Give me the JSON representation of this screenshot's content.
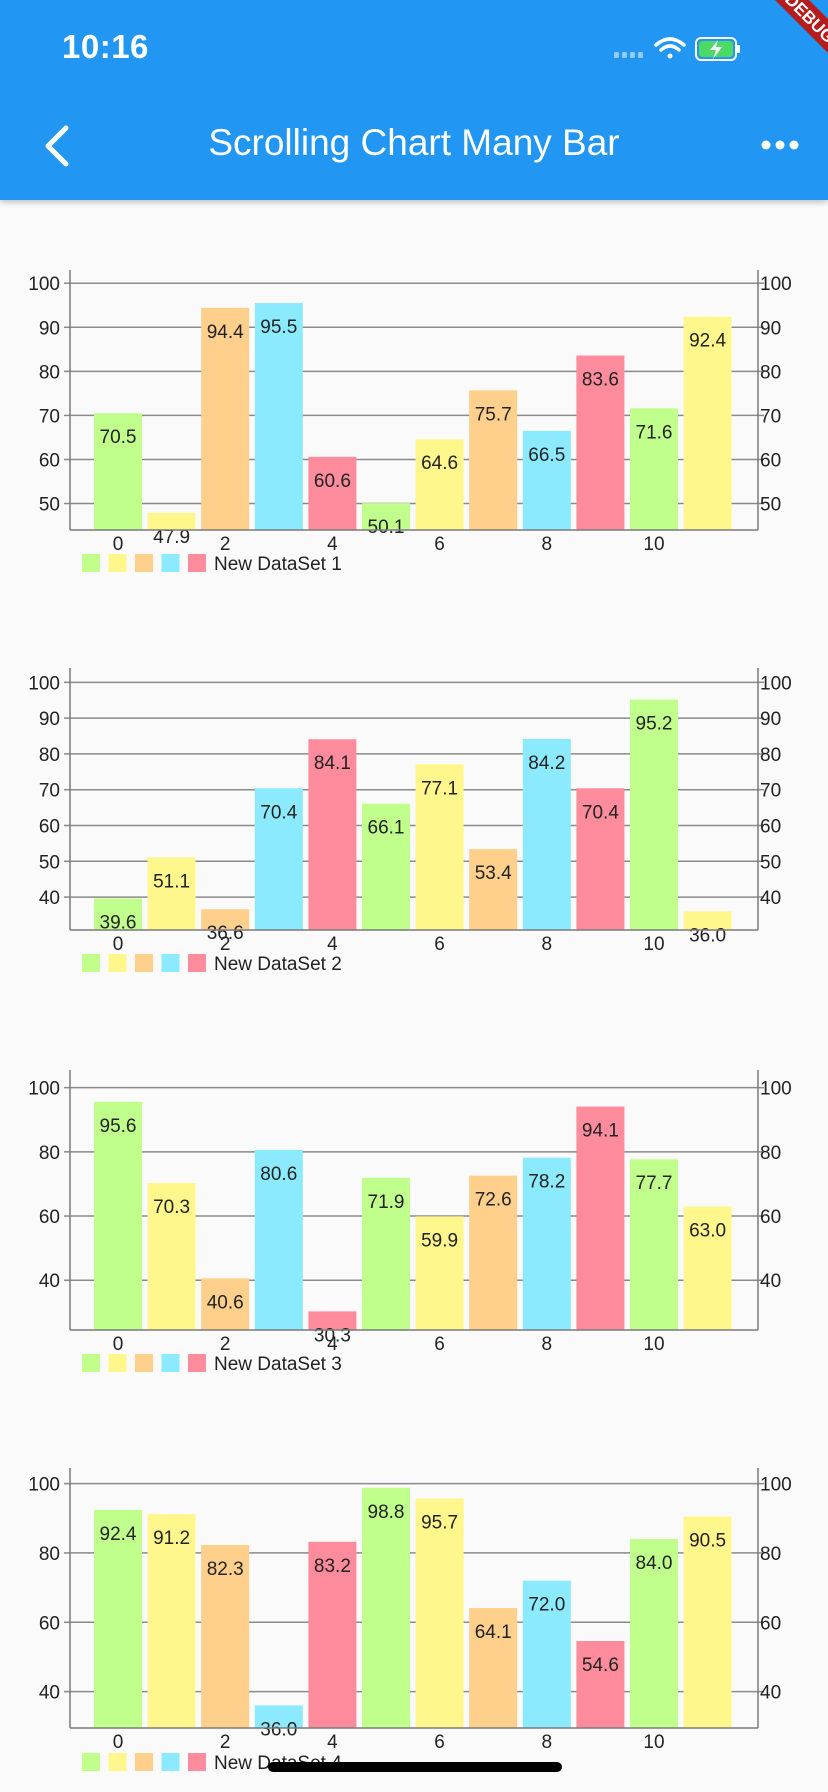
{
  "status_bar": {
    "time": "10:16",
    "debug_label": "DEBUG"
  },
  "app_bar": {
    "title": "Scrolling Chart Many Bar",
    "back_icon": "chevron-left-icon",
    "more_icon": "more-horizontal-icon"
  },
  "colors": {
    "app_bar": "#2196f3",
    "bar_palette": [
      "#c1ff8c",
      "#fff78c",
      "#ffd08c",
      "#8ceaff",
      "#ff8c9d"
    ],
    "grid": "#8a8a8a"
  },
  "chart_data": [
    {
      "type": "bar",
      "legend_label": "New DataSet 1",
      "x": [
        0,
        1,
        2,
        3,
        4,
        5,
        6,
        7,
        8,
        9,
        10,
        11
      ],
      "values": [
        70.5,
        47.9,
        94.4,
        95.5,
        60.6,
        50.1,
        64.6,
        75.7,
        66.5,
        83.6,
        71.6,
        92.4
      ],
      "y_ticks": [
        50,
        60,
        70,
        80,
        90,
        100
      ],
      "x_ticks": [
        "0",
        "2",
        "4",
        "6",
        "8",
        "10"
      ],
      "ylim": [
        44,
        103
      ],
      "legend_position": "bottom-left"
    },
    {
      "type": "bar",
      "legend_label": "New DataSet 2",
      "x": [
        0,
        1,
        2,
        3,
        4,
        5,
        6,
        7,
        8,
        9,
        10,
        11
      ],
      "values": [
        39.6,
        51.1,
        36.6,
        70.4,
        84.1,
        66.1,
        77.1,
        53.4,
        84.2,
        70.4,
        95.2,
        36.0
      ],
      "y_ticks": [
        40,
        50,
        60,
        70,
        80,
        90,
        100
      ],
      "x_ticks": [
        "0",
        "2",
        "4",
        "6",
        "8",
        "10"
      ],
      "ylim": [
        30.8,
        104
      ],
      "legend_position": "bottom-left"
    },
    {
      "type": "bar",
      "legend_label": "New DataSet 3",
      "x": [
        0,
        1,
        2,
        3,
        4,
        5,
        6,
        7,
        8,
        9,
        10,
        11
      ],
      "values": [
        95.6,
        70.3,
        40.6,
        80.6,
        30.3,
        71.9,
        59.9,
        72.6,
        78.2,
        94.1,
        77.7,
        63.0
      ],
      "y_ticks": [
        40,
        60,
        80,
        100
      ],
      "x_ticks": [
        "0",
        "2",
        "4",
        "6",
        "8",
        "10"
      ],
      "ylim": [
        24.5,
        105.5
      ],
      "legend_position": "bottom-left"
    },
    {
      "type": "bar",
      "legend_label": "New DataSet 4",
      "x": [
        0,
        1,
        2,
        3,
        4,
        5,
        6,
        7,
        8,
        9,
        10,
        11
      ],
      "values": [
        92.4,
        91.2,
        82.3,
        36.0,
        83.2,
        98.8,
        95.7,
        64.1,
        72.0,
        54.6,
        84.0,
        90.5
      ],
      "y_ticks": [
        40,
        60,
        80,
        100
      ],
      "x_ticks": [
        "0",
        "2",
        "4",
        "6",
        "8",
        "10"
      ],
      "ylim": [
        29.5,
        104.5
      ],
      "legend_position": "bottom-left"
    }
  ]
}
